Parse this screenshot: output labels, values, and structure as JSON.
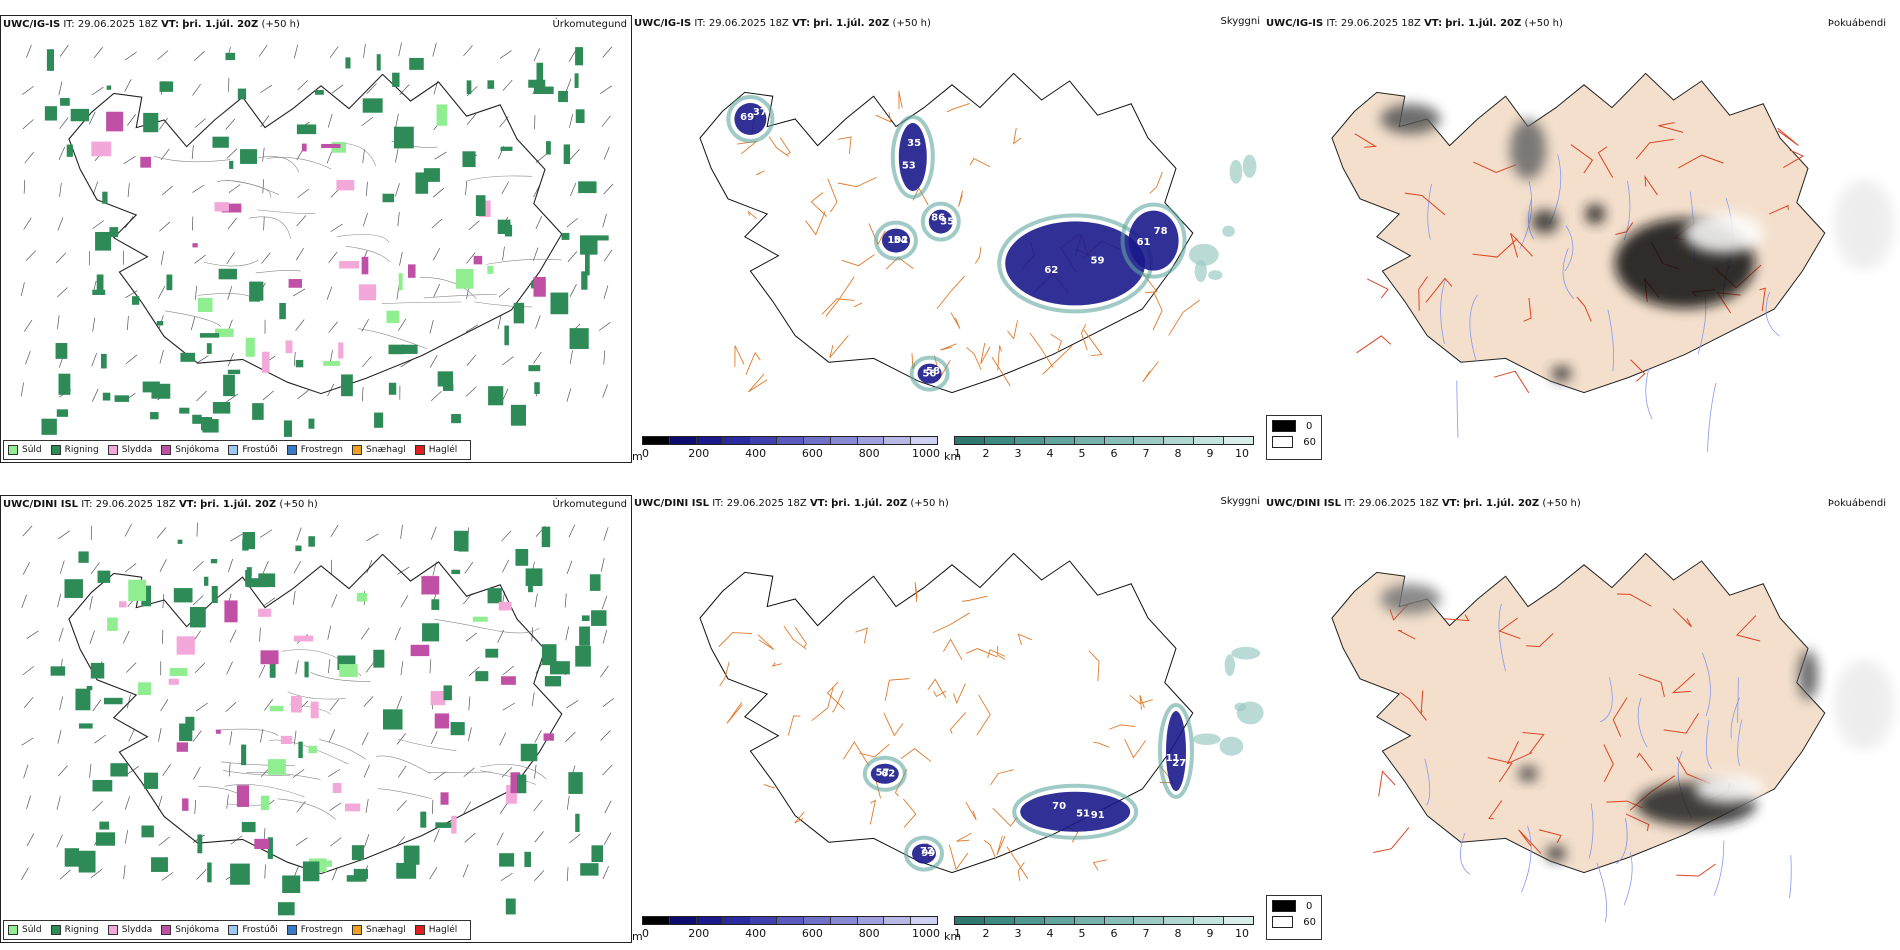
{
  "rows": [
    {
      "model": "UWC/IG-IS",
      "it_label": "IT:",
      "it_value": "29.06.2025 18Z",
      "vt_label": "VT:",
      "vt_value": "þri. 1.júl. 20Z",
      "lead": "(+50 h)",
      "precip_title": "Úrkomutegund",
      "cloud_title": "Skyggni",
      "fog_title": "Þokuábendi",
      "labels": [
        {
          "text": "59"
        },
        {
          "text": "78"
        },
        {
          "text": "35"
        },
        {
          "text": "102"
        },
        {
          "text": "86"
        },
        {
          "text": "56"
        },
        {
          "text": "37"
        },
        {
          "text": "62"
        },
        {
          "text": "61"
        },
        {
          "text": "53"
        },
        {
          "text": "54"
        },
        {
          "text": "35"
        },
        {
          "text": "58"
        },
        {
          "text": "69"
        }
      ]
    },
    {
      "model": "UWC/DINI ISL",
      "it_label": "IT:",
      "it_value": "29.06.2025 18Z",
      "vt_label": "VT:",
      "vt_value": "þri. 1.júl. 20Z",
      "lead": "(+50 h)",
      "precip_title": "Úrkomutegund",
      "cloud_title": "Skyggni",
      "fog_title": "Þokuábendi",
      "labels": [
        {
          "text": "70"
        },
        {
          "text": "27"
        },
        {
          "text": "57"
        },
        {
          "text": "72"
        },
        {
          "text": "51"
        },
        {
          "text": "11"
        },
        {
          "text": "62"
        },
        {
          "text": "99"
        },
        {
          "text": "91"
        }
      ]
    }
  ],
  "precip_legend": [
    {
      "label": "Súld",
      "color": "#90ee90"
    },
    {
      "label": "Rigning",
      "color": "#2e8b57"
    },
    {
      "label": "Slydda",
      "color": "#f2a8d8"
    },
    {
      "label": "Snjókoma",
      "color": "#c04fa6"
    },
    {
      "label": "Frostúði",
      "color": "#9ec8f0"
    },
    {
      "label": "Frostregn",
      "color": "#3a78c8"
    },
    {
      "label": "Snæhagl",
      "color": "#f0a020"
    },
    {
      "label": "Haglél",
      "color": "#e02020"
    }
  ],
  "cloudbase_bar": {
    "unit": "m",
    "ticks": [
      "0",
      "200",
      "400",
      "600",
      "800",
      "1000"
    ],
    "colors": [
      "#000000",
      "#0c0c6e",
      "#1a1a8c",
      "#2b2ba0",
      "#4040b0",
      "#5a5abe",
      "#7070c8",
      "#8888d4",
      "#a0a0dc",
      "#b8b8e6",
      "#d0d0f0"
    ]
  },
  "visibility_bar": {
    "unit": "km",
    "ticks": [
      "1",
      "2",
      "3",
      "4",
      "5",
      "6",
      "7",
      "8",
      "9",
      "10"
    ],
    "colors": [
      "#2e7870",
      "#3d8a80",
      "#4e9890",
      "#60a69e",
      "#74b2ab",
      "#88beb8",
      "#9ccac4",
      "#b0d6d1",
      "#c4e2de",
      "#d8eeeb"
    ]
  },
  "fog_legend": [
    {
      "value": "0",
      "color": "#000000"
    },
    {
      "value": "60",
      "color": "#ffffff"
    }
  ],
  "colors": {
    "land_fog": "#f3dfcc",
    "roads": "#e07a2a",
    "rivers": "#8899ee",
    "coast": "#111111"
  }
}
